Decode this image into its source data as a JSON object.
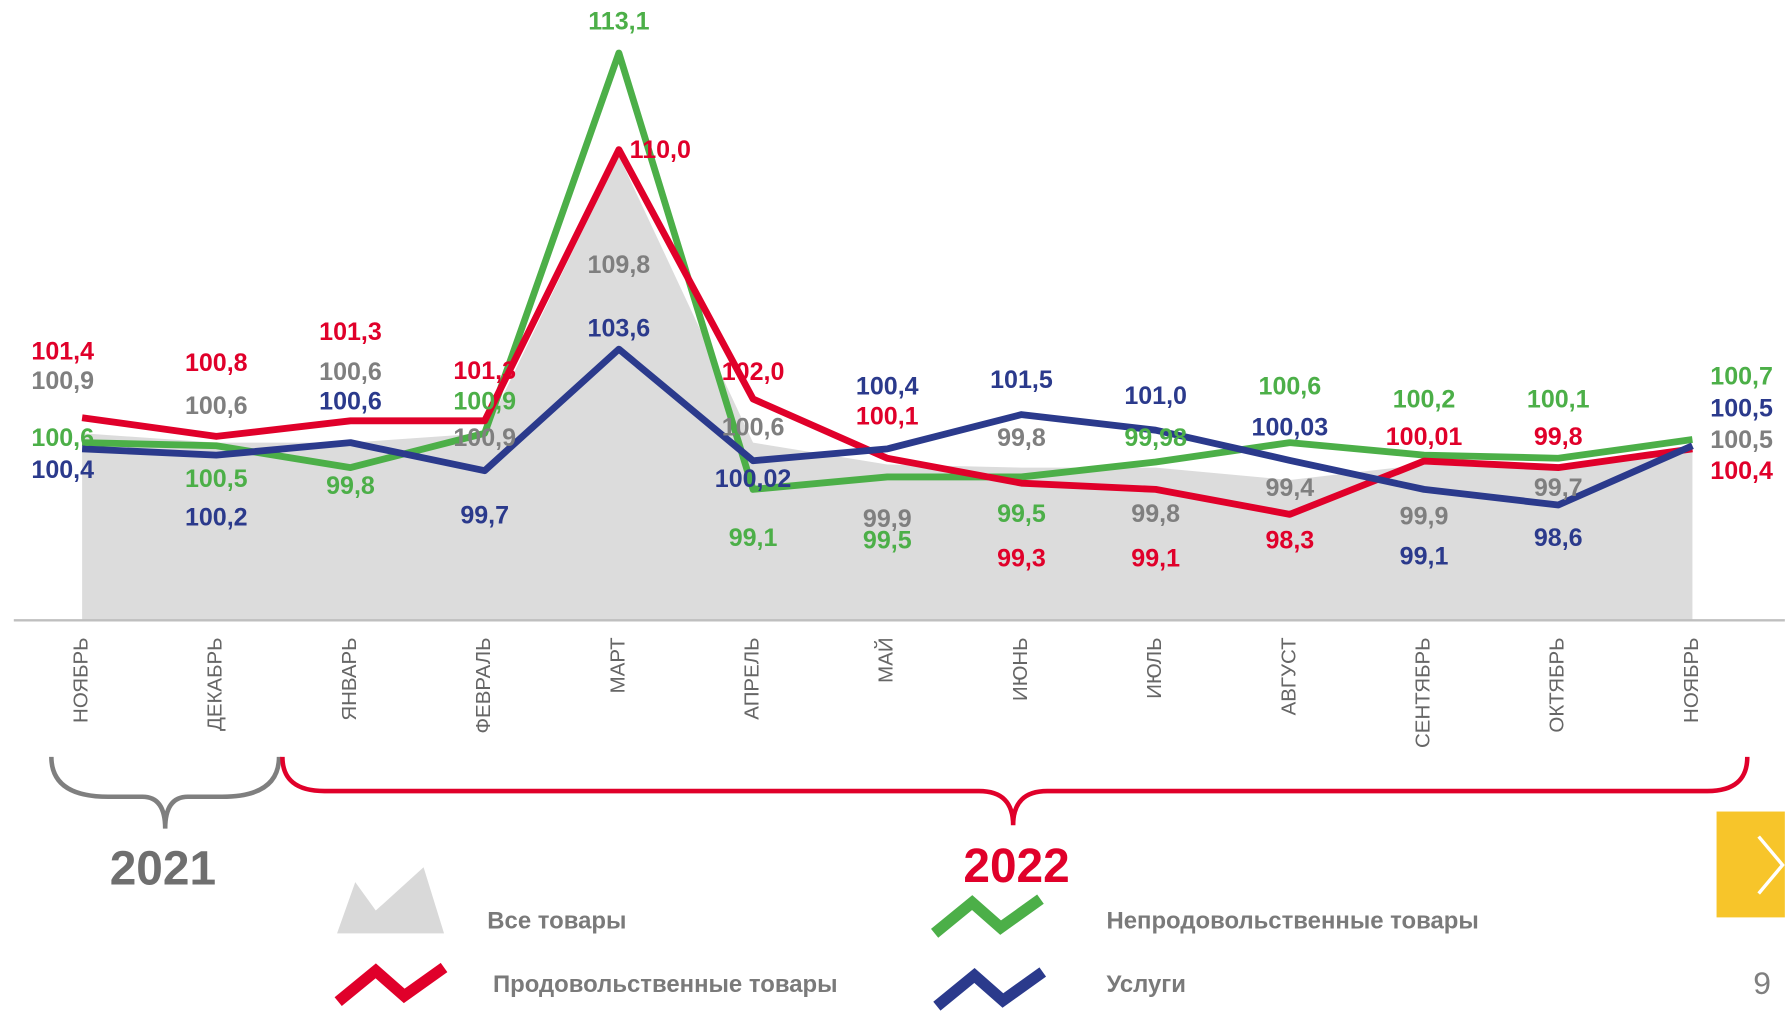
{
  "chart_data": {
    "type": "line",
    "categories": [
      "НОЯБРЬ",
      "ДЕКАБРЬ",
      "ЯНВАРЬ",
      "ФЕВРАЛЬ",
      "МАРТ",
      "АПРЕЛЬ",
      "МАЙ",
      "ИЮНЬ",
      "ИЮЛЬ",
      "АВГУСТ",
      "СЕНТЯБРЬ",
      "ОКТЯБРЬ",
      "НОЯБРЬ"
    ],
    "ylim": [
      94.9,
      114.8
    ],
    "series": [
      {
        "name": "Все товары",
        "type": "area",
        "color": "#dcdcdc",
        "label_color": "#7f7f7f",
        "values": [
          100.9,
          100.6,
          100.6,
          100.9,
          109.8,
          100.6,
          99.9,
          99.8,
          99.8,
          99.4,
          99.9,
          99.7,
          100.5
        ],
        "value_labels": [
          "100,9",
          "100,6",
          "100,6",
          "100,9",
          "109,8",
          "100,6",
          "99,9",
          "99,8",
          "99,8",
          "99,4",
          "99,9",
          "99,7",
          "100,5"
        ]
      },
      {
        "name": "Продовольственные товары",
        "color": "#e0002a",
        "values": [
          101.4,
          100.8,
          101.3,
          101.3,
          110.0,
          102.0,
          100.1,
          99.3,
          99.1,
          98.3,
          100.01,
          99.8,
          100.4
        ],
        "value_labels": [
          "101,4",
          "100,8",
          "101,3",
          "101,3",
          "110,0",
          "102,0",
          "100,1",
          "99,3",
          "99,1",
          "98,3",
          "100,01",
          "99,8",
          "100,4"
        ]
      },
      {
        "name": "Непродовольственные товары",
        "color": "#4caf48",
        "values": [
          100.6,
          100.5,
          99.8,
          100.9,
          113.1,
          99.1,
          99.5,
          99.5,
          99.98,
          100.6,
          100.2,
          100.1,
          100.7
        ],
        "value_labels": [
          "100,6",
          "100,5",
          "99,8",
          "100,9",
          "113,1",
          "99,1",
          "99,5",
          "99,5",
          "99,98",
          "100,6",
          "100,2",
          "100,1",
          "100,7"
        ]
      },
      {
        "name": "Услуги",
        "color": "#2b3a8c",
        "values": [
          100.4,
          100.2,
          100.6,
          99.7,
          103.6,
          100.02,
          100.4,
          101.5,
          101.0,
          100.03,
          99.1,
          98.6,
          100.5
        ],
        "value_labels": [
          "100,4",
          "100,2",
          "100,6",
          "99,7",
          "103,6",
          "100,02",
          "100,4",
          "101,5",
          "101,0",
          "100,03",
          "99,1",
          "98,6",
          "100,5"
        ]
      }
    ],
    "annotations": [
      "2021",
      "2022"
    ],
    "page_number": "9"
  }
}
